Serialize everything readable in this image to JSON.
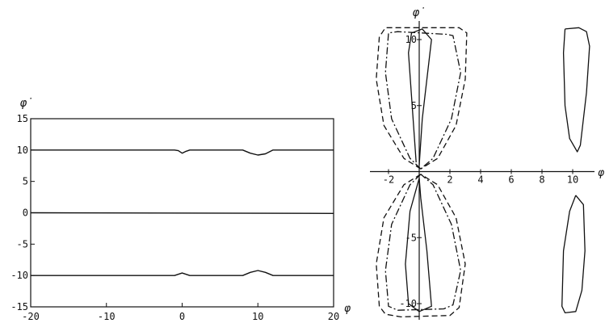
{
  "chart_data": [
    {
      "type": "line",
      "title": "",
      "xlabel": "φ",
      "ylabel": "φ̇",
      "xlim": [
        -20,
        20
      ],
      "ylim": [
        -15,
        15
      ],
      "xticks": [
        -20,
        -10,
        0,
        10,
        20
      ],
      "yticks": [
        -15,
        -10,
        -5,
        0,
        5,
        10,
        15
      ],
      "x_tick_labels": [
        "-20",
        "-10",
        "0",
        "10",
        "20"
      ],
      "y_tick_labels": [
        "-15",
        "-10",
        "-5",
        "0",
        "5",
        "10",
        "15"
      ],
      "grid": false,
      "series": [
        {
          "style": "solid",
          "points": [
            [
              -20,
              10
            ],
            [
              -1,
              10
            ],
            [
              -0.5,
              9.9
            ],
            [
              0,
              9.5
            ],
            [
              0.5,
              9.8
            ],
            [
              1,
              10
            ],
            [
              8,
              10
            ],
            [
              9,
              9.5
            ],
            [
              10,
              9.2
            ],
            [
              11,
              9.4
            ],
            [
              12,
              10
            ],
            [
              20,
              10
            ]
          ]
        },
        {
          "style": "solid",
          "points": [
            [
              -20,
              0
            ],
            [
              20,
              -0.1
            ]
          ]
        },
        {
          "style": "solid",
          "points": [
            [
              -20,
              -10
            ],
            [
              -1,
              -10
            ],
            [
              0,
              -9.6
            ],
            [
              1,
              -10
            ],
            [
              8,
              -10
            ],
            [
              9,
              -9.5
            ],
            [
              10,
              -9.2
            ],
            [
              11,
              -9.5
            ],
            [
              12,
              -10
            ],
            [
              20,
              -10
            ]
          ]
        }
      ]
    },
    {
      "type": "line",
      "title": "",
      "xlabel": "φ",
      "ylabel": "φ̇",
      "xlim": [
        -3,
        12
      ],
      "ylim": [
        -11,
        11
      ],
      "xticks": [
        -2,
        2,
        4,
        6,
        8,
        10
      ],
      "yticks": [
        10,
        5,
        -5,
        -10
      ],
      "x_tick_labels": [
        "-2",
        "2",
        "4",
        "6",
        "8",
        "10"
      ],
      "y_tick_labels": [
        "10",
        "5",
        "-5",
        "-10"
      ],
      "grid": false,
      "series": [
        {
          "style": "solid",
          "points": [
            [
              -0.2,
              0.7
            ],
            [
              -0.7,
              9
            ],
            [
              -0.5,
              10.5
            ],
            [
              0.2,
              10.8
            ],
            [
              0.8,
              10
            ],
            [
              0.2,
              4
            ],
            [
              0,
              0.5
            ]
          ]
        },
        {
          "style": "solid",
          "points": [
            [
              0,
              -0.5
            ],
            [
              -0.6,
              -3
            ],
            [
              -0.9,
              -7
            ],
            [
              -0.7,
              -10
            ],
            [
              0,
              -10.6
            ],
            [
              0.8,
              -10.2
            ],
            [
              0.5,
              -6
            ],
            [
              0.1,
              -2
            ],
            [
              0,
              -0.5
            ]
          ]
        },
        {
          "style": "dashed",
          "points": [
            [
              0.1,
              0.2
            ],
            [
              -1,
              1
            ],
            [
              -2.3,
              3.5
            ],
            [
              -2.8,
              7
            ],
            [
              -2.6,
              10.2
            ],
            [
              -2.2,
              10.9
            ],
            [
              -1.2,
              10.9
            ],
            [
              2.6,
              10.9
            ],
            [
              3.1,
              10.5
            ],
            [
              3,
              7
            ],
            [
              2.4,
              3.5
            ],
            [
              1.2,
              1
            ],
            [
              0.1,
              0.2
            ]
          ]
        },
        {
          "style": "dash-dot",
          "points": [
            [
              0.1,
              0.2
            ],
            [
              -0.6,
              1
            ],
            [
              -1.8,
              4
            ],
            [
              -2.2,
              7.5
            ],
            [
              -2,
              10.5
            ],
            [
              -1.4,
              10.6
            ],
            [
              1.8,
              10.4
            ],
            [
              2.2,
              10.3
            ],
            [
              2.7,
              7.5
            ],
            [
              2.1,
              4
            ],
            [
              0.9,
              1
            ],
            [
              0.1,
              0.2
            ]
          ]
        },
        {
          "style": "dashed",
          "points": [
            [
              0.1,
              -0.2
            ],
            [
              -1,
              -1
            ],
            [
              -2.3,
              -3.5
            ],
            [
              -2.8,
              -7
            ],
            [
              -2.6,
              -10.2
            ],
            [
              -2.2,
              -10.8
            ],
            [
              -1.2,
              -11
            ],
            [
              2,
              -10.9
            ],
            [
              2.6,
              -10.3
            ],
            [
              3,
              -7
            ],
            [
              2.4,
              -3.5
            ],
            [
              1.2,
              -1
            ],
            [
              0.1,
              -0.2
            ]
          ]
        },
        {
          "style": "dash-dot",
          "points": [
            [
              0.1,
              -0.2
            ],
            [
              -0.6,
              -1
            ],
            [
              -1.8,
              -4
            ],
            [
              -2.2,
              -7.5
            ],
            [
              -2,
              -10.2
            ],
            [
              -1.4,
              -10.5
            ],
            [
              1.6,
              -10.4
            ],
            [
              2.2,
              -10.1
            ],
            [
              2.7,
              -7.5
            ],
            [
              2.1,
              -4
            ],
            [
              0.9,
              -1
            ],
            [
              0.1,
              -0.2
            ]
          ]
        },
        {
          "style": "solid",
          "points": [
            [
              9.5,
              10.8
            ],
            [
              10.4,
              10.9
            ],
            [
              10.9,
              10.6
            ],
            [
              11.1,
              9.5
            ],
            [
              10.9,
              6
            ],
            [
              10.5,
              2
            ],
            [
              10.3,
              1.5
            ],
            [
              9.8,
              2.5
            ],
            [
              9.5,
              5
            ],
            [
              9.4,
              9
            ],
            [
              9.5,
              10.8
            ]
          ]
        },
        {
          "style": "solid",
          "points": [
            [
              10.2,
              -1.8
            ],
            [
              10.7,
              -2.5
            ],
            [
              10.8,
              -6
            ],
            [
              10.6,
              -9
            ],
            [
              10.2,
              -10.6
            ],
            [
              9.5,
              -10.7
            ],
            [
              9.3,
              -10.2
            ],
            [
              9.4,
              -6
            ],
            [
              9.8,
              -3
            ],
            [
              10.2,
              -1.8
            ]
          ]
        }
      ]
    }
  ]
}
